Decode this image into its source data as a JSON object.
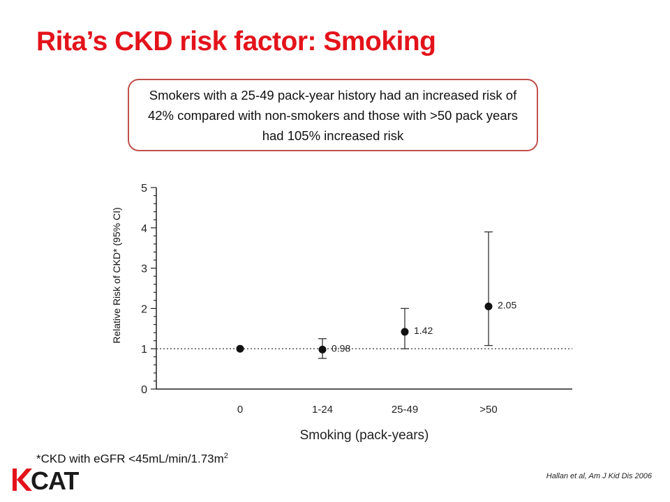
{
  "slide": {
    "title": "Rita’s CKD risk factor: Smoking",
    "callout": "Smokers with a 25-49 pack-year history had an increased risk of 42% compared with non-smokers and those with >50 pack years had 105% increased risk",
    "footnote_main": "*CKD with eGFR <45mL/min/1.73m",
    "footnote_sup": "2",
    "citation": "Hallan et al, Am J Kid Dis 2006",
    "logo_text": "KCAT",
    "logo_color": "#e3131b"
  },
  "chart_data": {
    "type": "scatter",
    "categories": [
      "0",
      "1-24",
      "25-49",
      ">50"
    ],
    "values": [
      1.0,
      0.98,
      1.42,
      2.05
    ],
    "ci_low": [
      null,
      0.76,
      1.0,
      1.08
    ],
    "ci_high": [
      null,
      1.25,
      2.0,
      3.9
    ],
    "data_labels": [
      "",
      "0.98",
      "1.42",
      "2.05"
    ],
    "xlabel": "Smoking (pack-years)",
    "ylabel": "Relative Risk of CKD* (95% CI)",
    "ylim": [
      0,
      5
    ],
    "yticks": [
      "0",
      "1",
      "2",
      "3",
      "4",
      "5"
    ],
    "reference_line": 1,
    "grid": false
  }
}
